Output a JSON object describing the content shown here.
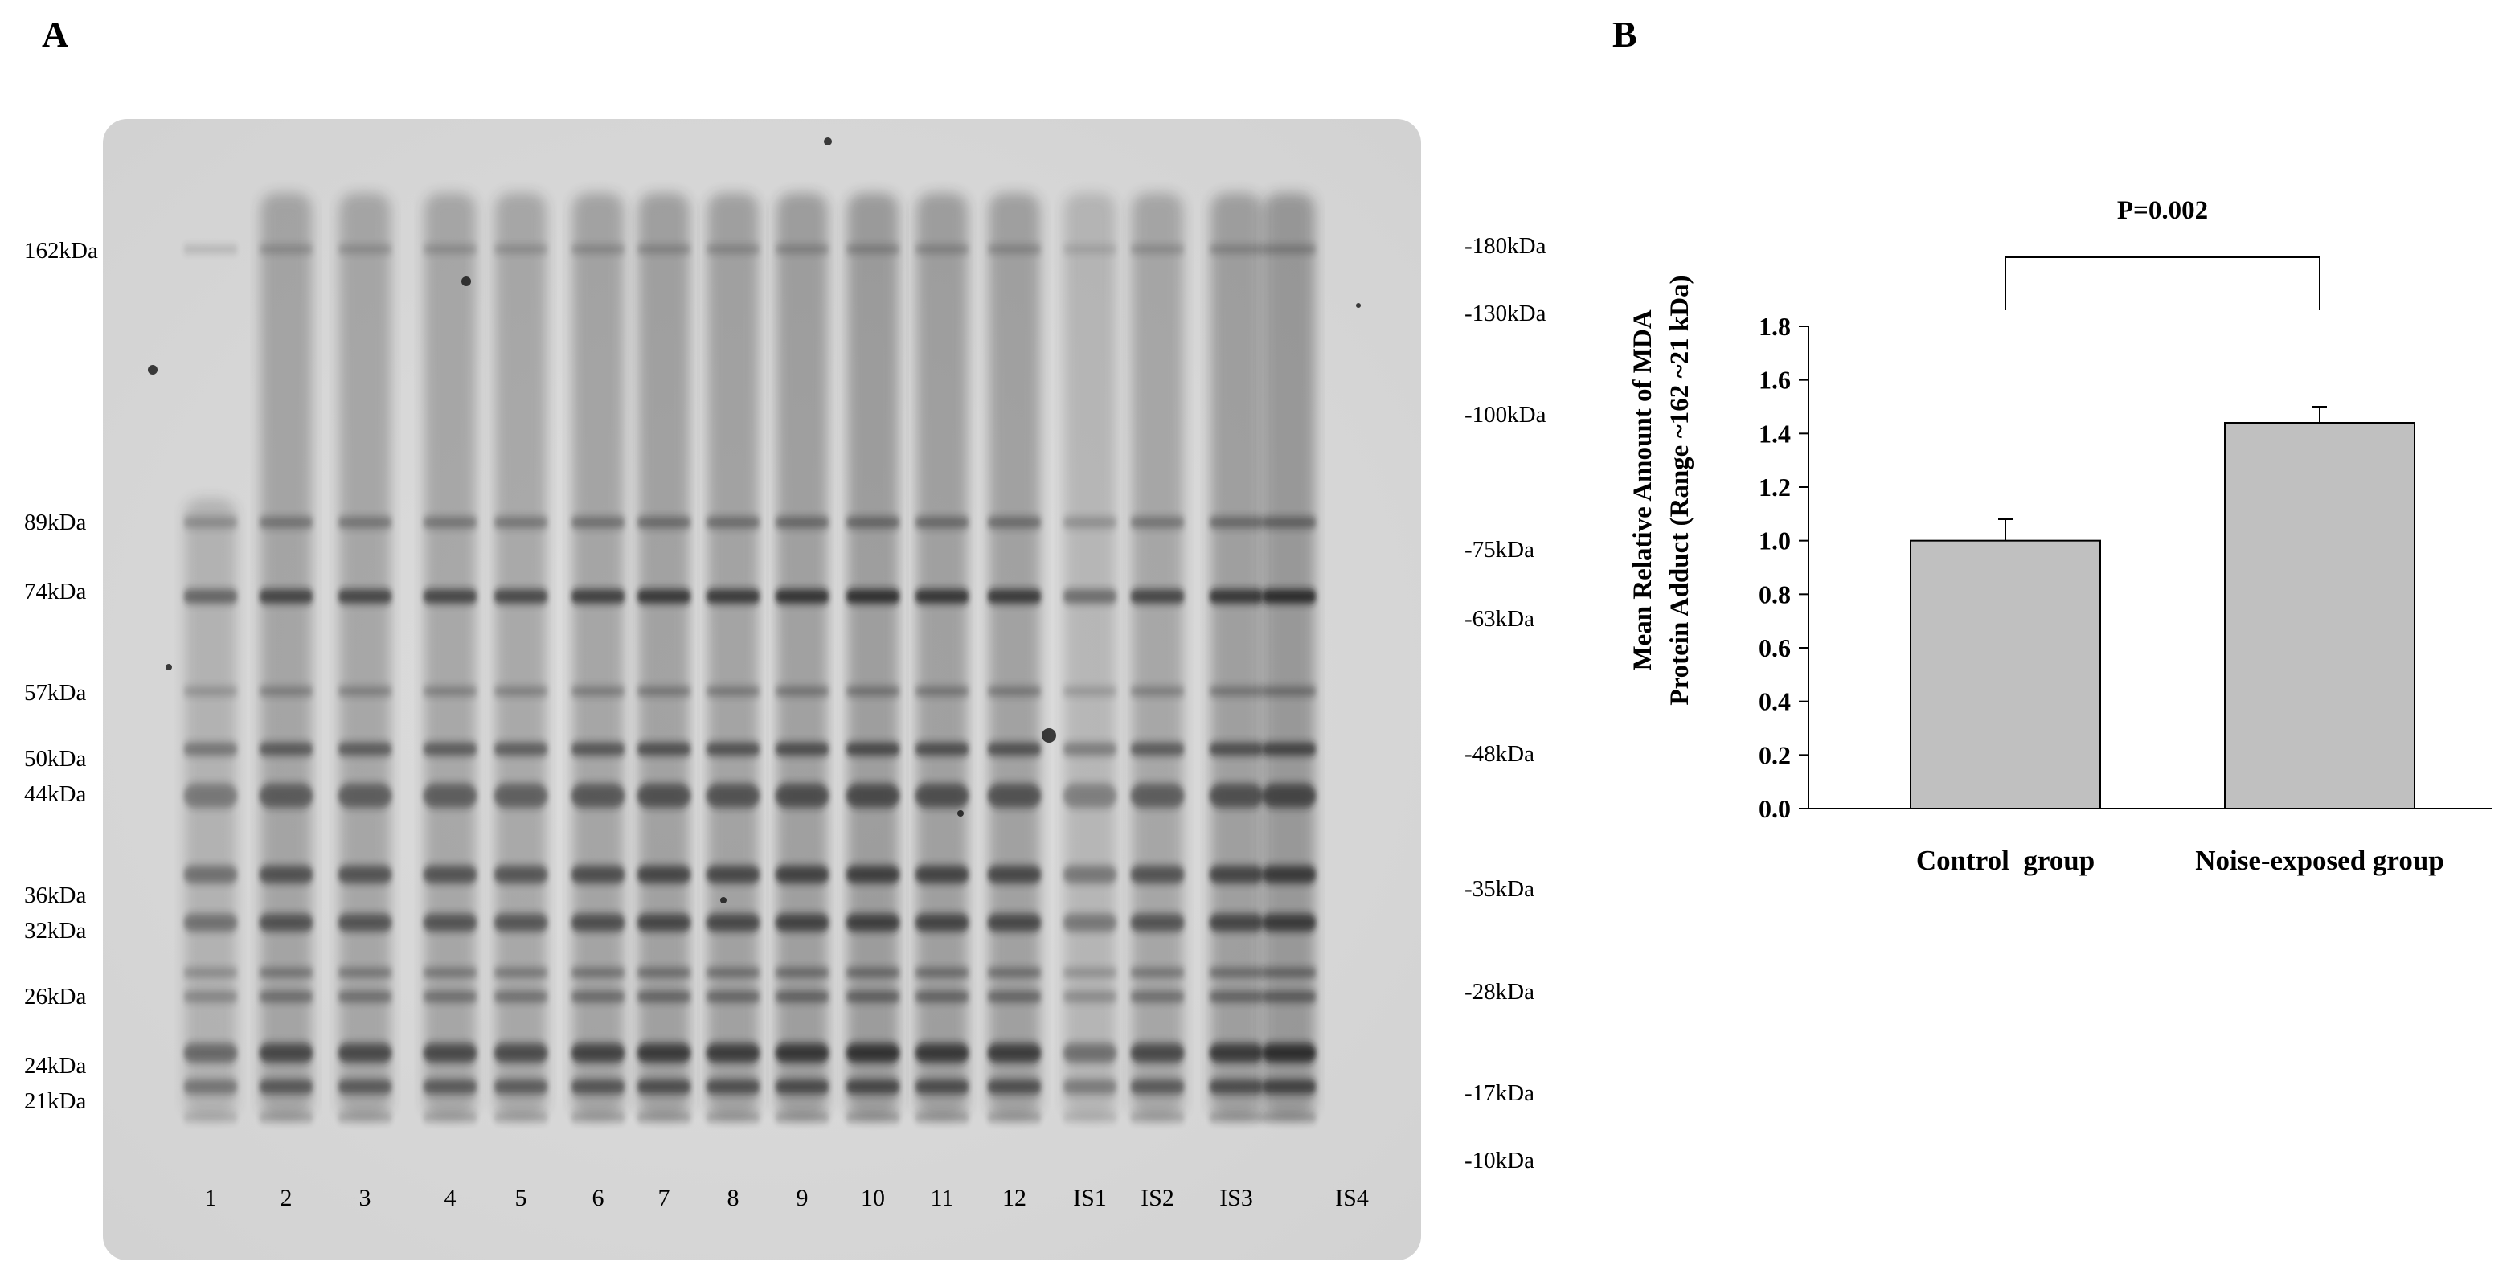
{
  "panel_a": {
    "letter": "A",
    "left_markers": [
      "162kDa",
      "89kDa",
      "74kDa",
      "57kDa",
      "50kDa",
      "44kDa",
      "36kDa",
      "32kDa",
      "26kDa",
      "24kDa",
      "21kDa"
    ],
    "right_markers": [
      "-180kDa",
      "-130kDa",
      "-100kDa",
      "-75kDa",
      "-63kDa",
      "-48kDa",
      "-35kDa",
      "-28kDa",
      "-17kDa",
      "-10kDa"
    ],
    "lanes": [
      "1",
      "2",
      "3",
      "4",
      "5",
      "6",
      "7",
      "8",
      "9",
      "10",
      "11",
      "12",
      "IS1",
      "IS2",
      "IS3",
      "IS4"
    ]
  },
  "panel_b": {
    "letter": "B"
  },
  "chart_data": {
    "type": "bar",
    "categories": [
      "Control  group",
      "Noise-exposed group"
    ],
    "values": [
      1.0,
      1.44
    ],
    "errors": [
      0.08,
      0.06
    ],
    "ylabel_line1": "Mean Relative Amount of MDA",
    "ylabel_line2": "Protein Adduct (Range ~162 ~21 kDa)",
    "ylim": [
      0,
      1.8
    ],
    "yticks": [
      "0.0",
      "0.2",
      "0.4",
      "0.6",
      "0.8",
      "1.0",
      "1.2",
      "1.4",
      "1.6",
      "1.8"
    ],
    "annotation": "P=0.002",
    "bar_color": "#c0c0c0"
  }
}
